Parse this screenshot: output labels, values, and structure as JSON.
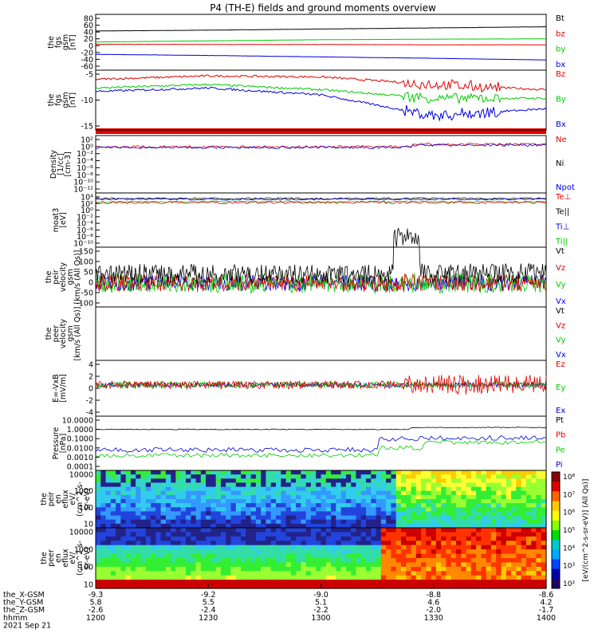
{
  "title": "P4 (TH-E) fields and ground moments overview",
  "colors": {
    "black": "#000000",
    "red": "#e00000",
    "green": "#00cc00",
    "blue": "#0000dd"
  },
  "chart_data": [
    {
      "type": "line",
      "panel": "fgs_gsm_nT",
      "ylabel": [
        "the",
        "fgs",
        "gsm",
        "[nT]"
      ],
      "ylim": [
        -80,
        90
      ],
      "yticks": [
        "80",
        "60",
        "40",
        "20",
        "0",
        "-20",
        "-40",
        "-60"
      ],
      "legend": [
        "Bt",
        "bz",
        "by",
        "bx"
      ],
      "x_hours": [
        12.0,
        12.5,
        13.0,
        13.5,
        14.0
      ],
      "series": [
        {
          "name": "Bt",
          "values": [
            45,
            48,
            52,
            56,
            60
          ]
        },
        {
          "name": "bz",
          "values": [
            -2,
            -3,
            -3,
            -4,
            -4
          ]
        },
        {
          "name": "by",
          "values": [
            6,
            10,
            14,
            16,
            17
          ]
        },
        {
          "name": "bx",
          "values": [
            -38,
            -42,
            -47,
            -52,
            -58
          ]
        }
      ]
    },
    {
      "type": "line",
      "panel": "fgs_gsm_dsl_nT",
      "ylabel": [
        "the",
        "fgs",
        "gsm",
        "[nT]"
      ],
      "ylim": [
        -17,
        -2
      ],
      "yticks": [
        "-5",
        "-10",
        "-15"
      ],
      "legend": [
        "Bz",
        "By",
        "Bx"
      ],
      "series": [
        {
          "name": "Bz",
          "values": [
            -3.5,
            -2.5,
            -2.8,
            -5,
            -6.5
          ]
        },
        {
          "name": "By",
          "values": [
            -6,
            -5,
            -6.5,
            -9,
            -9
          ]
        },
        {
          "name": "Bx",
          "values": [
            -7,
            -6,
            -8,
            -14,
            -12
          ]
        }
      ]
    },
    {
      "type": "line",
      "panel": "density",
      "ylabel": [
        "Density",
        "[1/cc]",
        "[cm-3]"
      ],
      "ylim": [
        -12,
        3
      ],
      "log": true,
      "yticks": [
        "10²",
        "10⁰",
        "10⁻²",
        "10⁻⁴",
        "10⁻⁶",
        "10⁻⁸",
        "10⁻¹⁰",
        "10⁻¹²"
      ],
      "legend": [
        "Ne",
        "Ni",
        "Npot"
      ]
    },
    {
      "type": "line",
      "panel": "temperature",
      "ylabel": [
        "moat3",
        "[eV]"
      ],
      "ylim": [
        -10,
        4
      ],
      "log": true,
      "yticks": [
        "10⁴",
        "10²",
        "10⁰",
        "10⁻²",
        "10⁻⁴",
        "10⁻⁶",
        "10⁻⁸",
        "10⁻¹⁰"
      ],
      "legend": [
        "Te⊥",
        "Te||",
        "Ti⊥",
        "Ti||"
      ]
    },
    {
      "type": "line",
      "panel": "peir_velocity",
      "ylabel": [
        "the",
        "peir",
        "velocity",
        "gsm",
        "[km/s (All Qs)]"
      ],
      "ylim": [
        -100,
        160
      ],
      "yticks": [
        "150",
        "100",
        "50",
        "0",
        "-50",
        "-100"
      ],
      "legend": [
        "Vt",
        "Vz",
        "Vy",
        "Vx"
      ]
    },
    {
      "type": "line",
      "panel": "peer_velocity",
      "ylabel": [
        "the",
        "peer",
        "velocity",
        "gsm",
        "[km/s (All Qs)]"
      ],
      "legend": [
        "Vt",
        "Vz",
        "Vy",
        "Vx"
      ]
    },
    {
      "type": "line",
      "panel": "efield",
      "ylabel": [
        "E=-VxB",
        "[mV/m]"
      ],
      "ylim": [
        -6,
        4.5
      ],
      "yticks": [
        "4",
        "2",
        "0",
        "-2",
        "-4"
      ],
      "legend": [
        "Ez",
        "Ey",
        "Ex"
      ]
    },
    {
      "type": "line",
      "panel": "pressure",
      "ylabel": [
        "Pressure",
        "[nPa]"
      ],
      "ylim": [
        -4,
        1
      ],
      "log": true,
      "yticks": [
        "10.0000",
        "1.0000",
        "0.1000",
        "0.0100",
        "0.0010",
        "0.0001"
      ],
      "legend": [
        "Pt",
        "Pb",
        "Pe",
        "Pi"
      ]
    },
    {
      "type": "heatmap",
      "panel": "peir_eflux",
      "ylabel": [
        "the",
        "peir",
        "en",
        "eflux",
        "eV/",
        "(cm^2-s-",
        "sr-eV)"
      ],
      "log": true,
      "yticks": [
        "10000",
        "1000",
        "100",
        "10"
      ]
    },
    {
      "type": "heatmap",
      "panel": "peer_eflux",
      "ylabel": [
        "the",
        "peer",
        "en",
        "eflux",
        "eV/",
        "(cm^2-s-",
        "sr-eV)"
      ],
      "log": true,
      "yticks": [
        "10000",
        "1000",
        "100",
        "10"
      ]
    }
  ],
  "colorbar": {
    "ticks": [
      "10⁸",
      "10⁷",
      "10⁶",
      "10⁵",
      "10⁴",
      "10³",
      "10²"
    ],
    "label": "[eV/(cm^2-s-sr-eV)] (All Qs)]"
  },
  "xaxis": {
    "row_labels": [
      "the_X-GSM",
      "the_Y-GSM",
      "the_Z-GSM",
      "hhmm",
      "2021 Sep 21"
    ],
    "columns": [
      {
        "x": "-9.3",
        "y": "5.8",
        "z": "-2.6",
        "hhmm": "1200"
      },
      {
        "x": "-9.2",
        "y": "5.5",
        "z": "-2.4",
        "hhmm": "1230"
      },
      {
        "x": "-9.0",
        "y": "5.1",
        "z": "-2.2",
        "hhmm": "1300"
      },
      {
        "x": "-8.8",
        "y": "4.6",
        "z": "-2.0",
        "hhmm": "1330"
      },
      {
        "x": "-8.6",
        "y": "4.2",
        "z": "-1.7",
        "hhmm": "1400"
      }
    ]
  }
}
